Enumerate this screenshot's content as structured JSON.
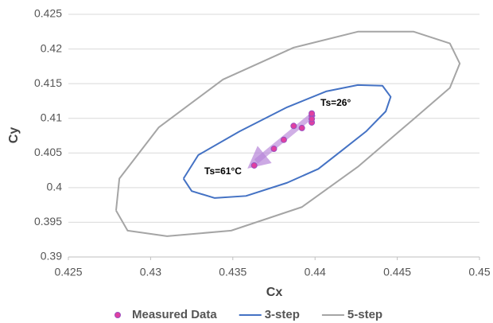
{
  "chart_data": {
    "type": "scatter",
    "xlabel": "Cx",
    "ylabel": "Cy",
    "xlim": [
      0.425,
      0.45
    ],
    "ylim": [
      0.39,
      0.425
    ],
    "xticks": [
      0.425,
      0.43,
      0.435,
      0.44,
      0.445,
      0.45
    ],
    "yticks": [
      0.39,
      0.395,
      0.4,
      0.405,
      0.41,
      0.415,
      0.42,
      0.425
    ],
    "grid": true,
    "legend": "bottom",
    "annotations": [
      "Ts=26°",
      "Ts=61°C"
    ],
    "series": [
      {
        "name": "Measured Data",
        "color": "#e040a0",
        "style": "markers",
        "x": [
          0.4363,
          0.4375,
          0.4381,
          0.4387,
          0.4392,
          0.4398,
          0.4398,
          0.4398,
          0.4398
        ],
        "y": [
          0.4032,
          0.4056,
          0.4069,
          0.4089,
          0.4086,
          0.4104,
          0.4107,
          0.4094,
          0.4099
        ]
      },
      {
        "name": "3-step",
        "color": "#4472c4",
        "style": "line",
        "x": [
          0.432,
          0.4325,
          0.4339,
          0.4358,
          0.4383,
          0.4402,
          0.4416,
          0.4431,
          0.4443,
          0.4446,
          0.4441,
          0.4426,
          0.4407,
          0.4383,
          0.4354,
          0.4329,
          0.432
        ],
        "y": [
          0.4013,
          0.3995,
          0.3985,
          0.3988,
          0.4007,
          0.4027,
          0.4053,
          0.4081,
          0.411,
          0.4131,
          0.4147,
          0.4148,
          0.4139,
          0.4116,
          0.4081,
          0.4047,
          0.4013
        ]
      },
      {
        "name": "5-step",
        "color": "#a5a5a5",
        "style": "line",
        "x": [
          0.4279,
          0.4286,
          0.431,
          0.4349,
          0.4392,
          0.4426,
          0.446,
          0.4482,
          0.4488,
          0.4482,
          0.446,
          0.4426,
          0.4387,
          0.4344,
          0.4305,
          0.4281,
          0.4279
        ],
        "y": [
          0.3967,
          0.3938,
          0.393,
          0.3938,
          0.3972,
          0.403,
          0.4099,
          0.4144,
          0.4179,
          0.4208,
          0.4225,
          0.4225,
          0.4202,
          0.4156,
          0.4087,
          0.4013,
          0.3967
        ]
      }
    ]
  }
}
